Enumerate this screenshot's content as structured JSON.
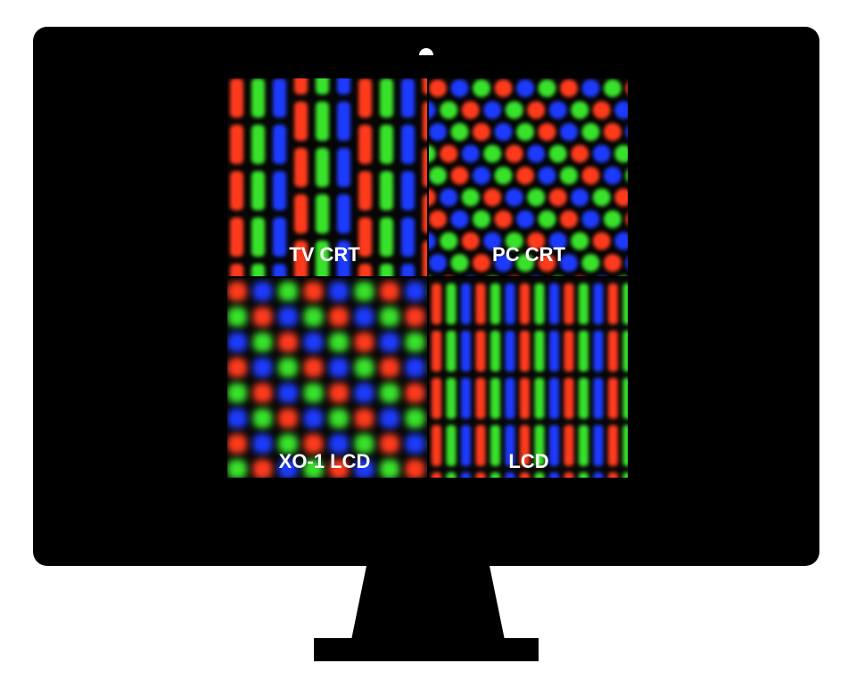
{
  "colors": {
    "background": "#ffffff",
    "monitor": "#000000",
    "subpixel_red": "#ff3b1f",
    "subpixel_green": "#38e22a",
    "subpixel_blue": "#1f3bff",
    "label": "#ffffff"
  },
  "panels": [
    {
      "id": "tv-crt",
      "label": "TV CRT",
      "pattern": "aperture-grille"
    },
    {
      "id": "pc-crt",
      "label": "PC CRT",
      "pattern": "shadow-mask"
    },
    {
      "id": "xo1-lcd",
      "label": "XO-1 LCD",
      "pattern": "diagonal-dots"
    },
    {
      "id": "lcd",
      "label": "LCD",
      "pattern": "rgb-stripes"
    }
  ]
}
